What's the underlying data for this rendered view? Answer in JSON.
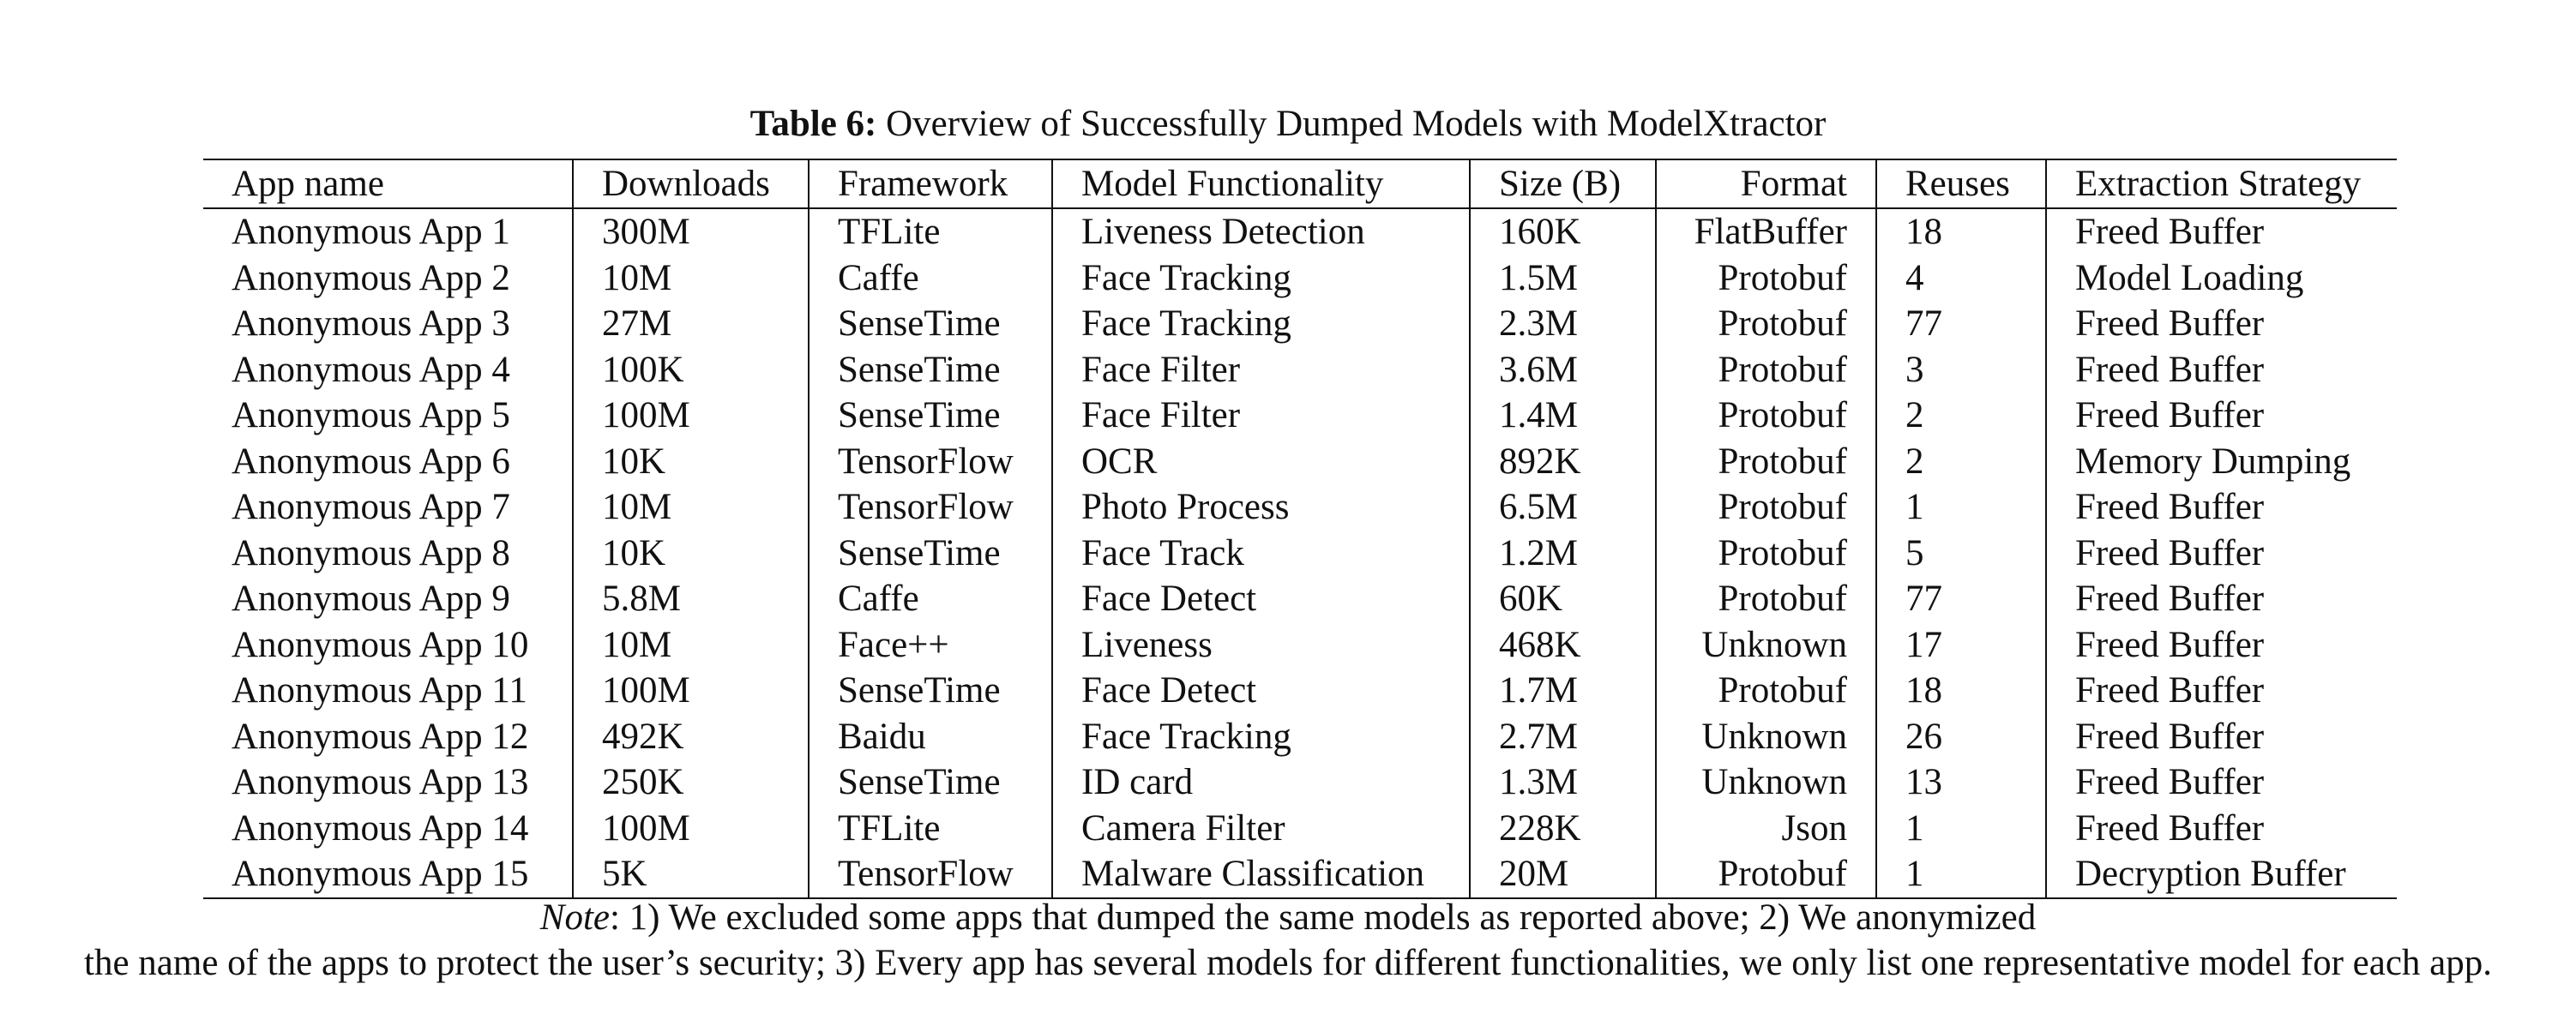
{
  "caption": {
    "label": "Table 6:",
    "text": " Overview of Successfully Dumped Models with ModelXtractor"
  },
  "table": {
    "headers": [
      "App name",
      "Downloads",
      "Framework",
      "Model Functionality",
      "Size (B)",
      "Format",
      "Reuses",
      "Extraction Strategy"
    ],
    "rows": [
      [
        "Anonymous App 1",
        "300M",
        "TFLite",
        "Liveness Detection",
        "160K",
        "FlatBuffer",
        "18",
        "Freed Buffer"
      ],
      [
        "Anonymous App 2",
        "10M",
        "Caffe",
        "Face Tracking",
        "1.5M",
        "Protobuf",
        "4",
        "Model Loading"
      ],
      [
        "Anonymous App 3",
        "27M",
        "SenseTime",
        "Face Tracking",
        "2.3M",
        "Protobuf",
        "77",
        "Freed Buffer"
      ],
      [
        "Anonymous App 4",
        "100K",
        "SenseTime",
        "Face Filter",
        "3.6M",
        "Protobuf",
        "3",
        "Freed Buffer"
      ],
      [
        "Anonymous App 5",
        "100M",
        "SenseTime",
        "Face Filter",
        "1.4M",
        "Protobuf",
        "2",
        "Freed Buffer"
      ],
      [
        "Anonymous App 6",
        "10K",
        "TensorFlow",
        "OCR",
        "892K",
        "Protobuf",
        "2",
        "Memory Dumping"
      ],
      [
        "Anonymous App 7",
        "10M",
        "TensorFlow",
        "Photo Process",
        "6.5M",
        "Protobuf",
        "1",
        "Freed Buffer"
      ],
      [
        "Anonymous App 8",
        "10K",
        "SenseTime",
        "Face Track",
        "1.2M",
        "Protobuf",
        "5",
        "Freed Buffer"
      ],
      [
        "Anonymous App 9",
        "5.8M",
        "Caffe",
        "Face Detect",
        "60K",
        "Protobuf",
        "77",
        "Freed Buffer"
      ],
      [
        "Anonymous App 10",
        "10M",
        "Face++",
        "Liveness",
        "468K",
        "Unknown",
        "17",
        "Freed Buffer"
      ],
      [
        "Anonymous App 11",
        "100M",
        "SenseTime",
        "Face Detect",
        "1.7M",
        "Protobuf",
        "18",
        "Freed Buffer"
      ],
      [
        "Anonymous App 12",
        "492K",
        "Baidu",
        "Face Tracking",
        "2.7M",
        "Unknown",
        "26",
        "Freed Buffer"
      ],
      [
        "Anonymous App 13",
        "250K",
        "SenseTime",
        "ID card",
        "1.3M",
        "Unknown",
        "13",
        "Freed Buffer"
      ],
      [
        "Anonymous App 14",
        "100M",
        "TFLite",
        "Camera Filter",
        "228K",
        "Json",
        "1",
        "Freed Buffer"
      ],
      [
        "Anonymous App 15",
        "5K",
        "TensorFlow",
        "Malware Classification",
        "20M",
        "Protobuf",
        "1",
        "Decryption Buffer"
      ]
    ]
  },
  "note": {
    "label": "Note",
    "line1": ": 1) We excluded some apps that dumped the same models as reported above; 2) We anonymized",
    "line2": "the name of the apps to protect the user’s security; 3) Every app has several models for different functionalities, we only list one representative model for each app."
  }
}
